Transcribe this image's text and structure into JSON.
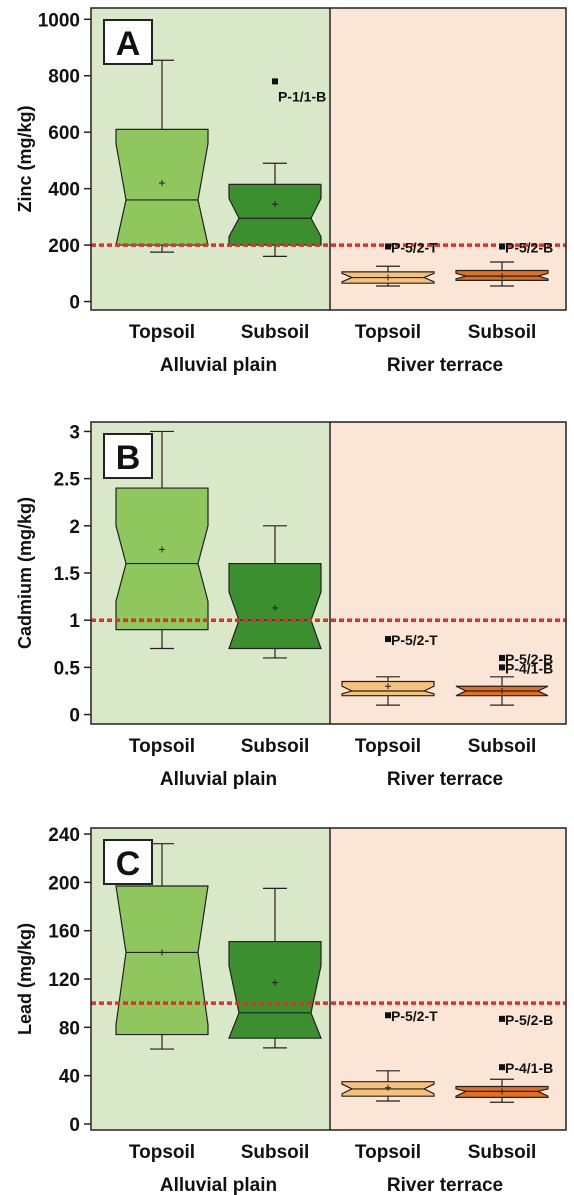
{
  "colors": {
    "alluvial_bg": "#d9e8c9",
    "terrace_bg": "#fbe5d6",
    "threshold": "#e0302a",
    "box_topsoil_alluvial": "#8fc65e",
    "box_subsoil_alluvial": "#3c8f2e",
    "box_topsoil_terrace": "#f6c27a",
    "box_subsoil_terrace": "#e06f1e"
  },
  "chart_data": [
    {
      "type": "box",
      "panel_label": "A",
      "ylabel": "Zinc (mg/kg)",
      "ylim": [
        -30,
        1040
      ],
      "yticks": [
        0,
        200,
        400,
        600,
        800,
        1000
      ],
      "threshold": 200,
      "categories": [
        "Topsoil",
        "Subsoil",
        "Topsoil",
        "Subsoil"
      ],
      "groups": [
        "Alluvial plain",
        "River terrace"
      ],
      "boxes": [
        {
          "whisker_low": 175,
          "q1": 200,
          "median": 360,
          "q3": 610,
          "whisker_high": 855,
          "notch_low": 200,
          "notch_high": 560,
          "mean": 420
        },
        {
          "whisker_low": 160,
          "q1": 200,
          "median": 295,
          "q3": 415,
          "whisker_high": 490,
          "notch_low": 230,
          "notch_high": 365,
          "mean": 345
        },
        {
          "whisker_low": 55,
          "q1": 65,
          "median": 85,
          "q3": 105,
          "whisker_high": 125,
          "notch_low": 70,
          "notch_high": 100,
          "mean": 85
        },
        {
          "whisker_low": 55,
          "q1": 75,
          "median": 90,
          "q3": 110,
          "whisker_high": 140,
          "notch_low": 80,
          "notch_high": 100,
          "mean": 90
        }
      ],
      "outliers": [
        {
          "box": 1,
          "value": 780,
          "label": "P-1/1-B"
        },
        {
          "box": 2,
          "value": 195,
          "label": "P-5/2-T"
        },
        {
          "box": 3,
          "value": 195,
          "label": "P-5/2-B"
        }
      ]
    },
    {
      "type": "box",
      "panel_label": "B",
      "ylabel": "Cadmium (mg/kg)",
      "ylim": [
        -0.1,
        3.1
      ],
      "yticks": [
        "0",
        "0.5",
        "1",
        "1.5",
        "2",
        "2.5",
        "3"
      ],
      "threshold": 1,
      "categories": [
        "Topsoil",
        "Subsoil",
        "Topsoil",
        "Subsoil"
      ],
      "groups": [
        "Alluvial plain",
        "River terrace"
      ],
      "boxes": [
        {
          "whisker_low": 0.7,
          "q1": 0.9,
          "median": 1.6,
          "q3": 2.4,
          "whisker_high": 3.0,
          "notch_low": 1.2,
          "notch_high": 2.0,
          "mean": 1.75
        },
        {
          "whisker_low": 0.6,
          "q1": 0.7,
          "median": 1.0,
          "q3": 1.6,
          "whisker_high": 2.0,
          "notch_low": 0.7,
          "notch_high": 1.3,
          "mean": 1.13
        },
        {
          "whisker_low": 0.1,
          "q1": 0.2,
          "median": 0.25,
          "q3": 0.35,
          "whisker_high": 0.4,
          "notch_low": 0.22,
          "notch_high": 0.3,
          "mean": 0.3
        },
        {
          "whisker_low": 0.1,
          "q1": 0.2,
          "median": 0.25,
          "q3": 0.3,
          "whisker_high": 0.4,
          "notch_low": 0.2,
          "notch_high": 0.3,
          "mean": 0.25
        }
      ],
      "outliers": [
        {
          "box": 2,
          "value": 0.8,
          "label": "P-5/2-T"
        },
        {
          "box": 3,
          "value": 0.6,
          "label": "P-5/2-B"
        },
        {
          "box": 3,
          "value": 0.5,
          "label": "P-4/1-B"
        }
      ]
    },
    {
      "type": "box",
      "panel_label": "C",
      "ylabel": "Lead (mg/kg)",
      "ylim": [
        -5,
        245
      ],
      "yticks": [
        0,
        40,
        80,
        120,
        160,
        200,
        240
      ],
      "threshold": 100,
      "categories": [
        "Topsoil",
        "Subsoil",
        "Topsoil",
        "Subsoil"
      ],
      "groups": [
        "Alluvial plain",
        "River terrace"
      ],
      "boxes": [
        {
          "whisker_low": 62,
          "q1": 74,
          "median": 142,
          "q3": 197,
          "whisker_high": 232,
          "notch_low": 82,
          "notch_high": 197,
          "mean": 142
        },
        {
          "whisker_low": 63,
          "q1": 71,
          "median": 92,
          "q3": 151,
          "whisker_high": 195,
          "notch_low": 71,
          "notch_high": 131,
          "mean": 117
        },
        {
          "whisker_low": 19,
          "q1": 23,
          "median": 29,
          "q3": 35,
          "whisker_high": 44,
          "notch_low": 25,
          "notch_high": 33,
          "mean": 30
        },
        {
          "whisker_low": 18,
          "q1": 22,
          "median": 27,
          "q3": 31,
          "whisker_high": 37,
          "notch_low": 23,
          "notch_high": 29,
          "mean": 27
        }
      ],
      "outliers": [
        {
          "box": 2,
          "value": 90,
          "label": "P-5/2-T"
        },
        {
          "box": 3,
          "value": 87,
          "label": "P-5/2-B"
        },
        {
          "box": 3,
          "value": 47,
          "label": "P-4/1-B"
        }
      ]
    }
  ]
}
